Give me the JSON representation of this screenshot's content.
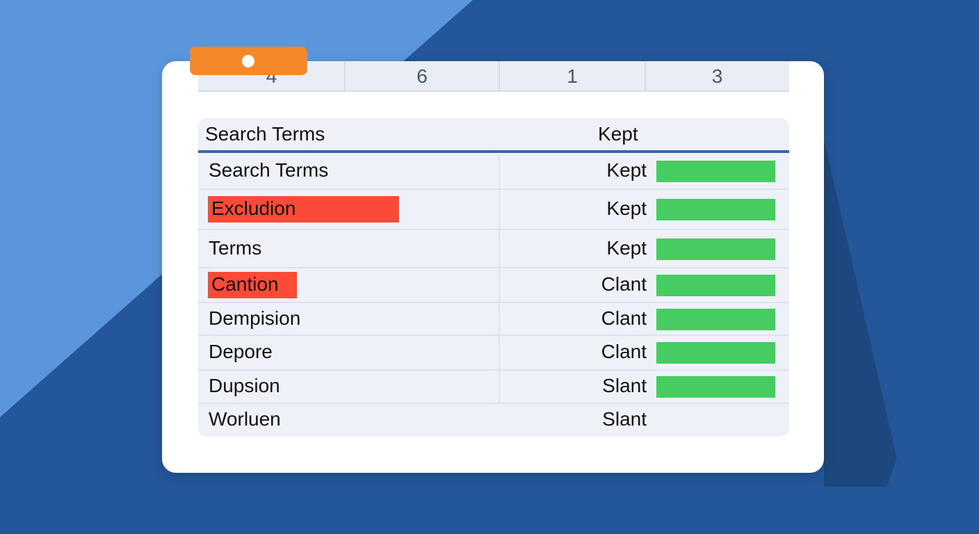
{
  "tabs": [
    4,
    6,
    1,
    3
  ],
  "table": {
    "header": [
      "Search Terms",
      "Kept"
    ],
    "rows": [
      [
        "Search Terms",
        "Kept"
      ],
      [
        "Excludion",
        "Kept"
      ],
      [
        "Terms",
        "Kept"
      ],
      [
        "Cantion",
        "Clant"
      ],
      [
        "Dempision",
        "Clant"
      ],
      [
        "Depore",
        "Clant"
      ],
      [
        "Dupsion",
        "Slant"
      ],
      [
        "Worluen",
        "Slant"
      ]
    ]
  }
}
